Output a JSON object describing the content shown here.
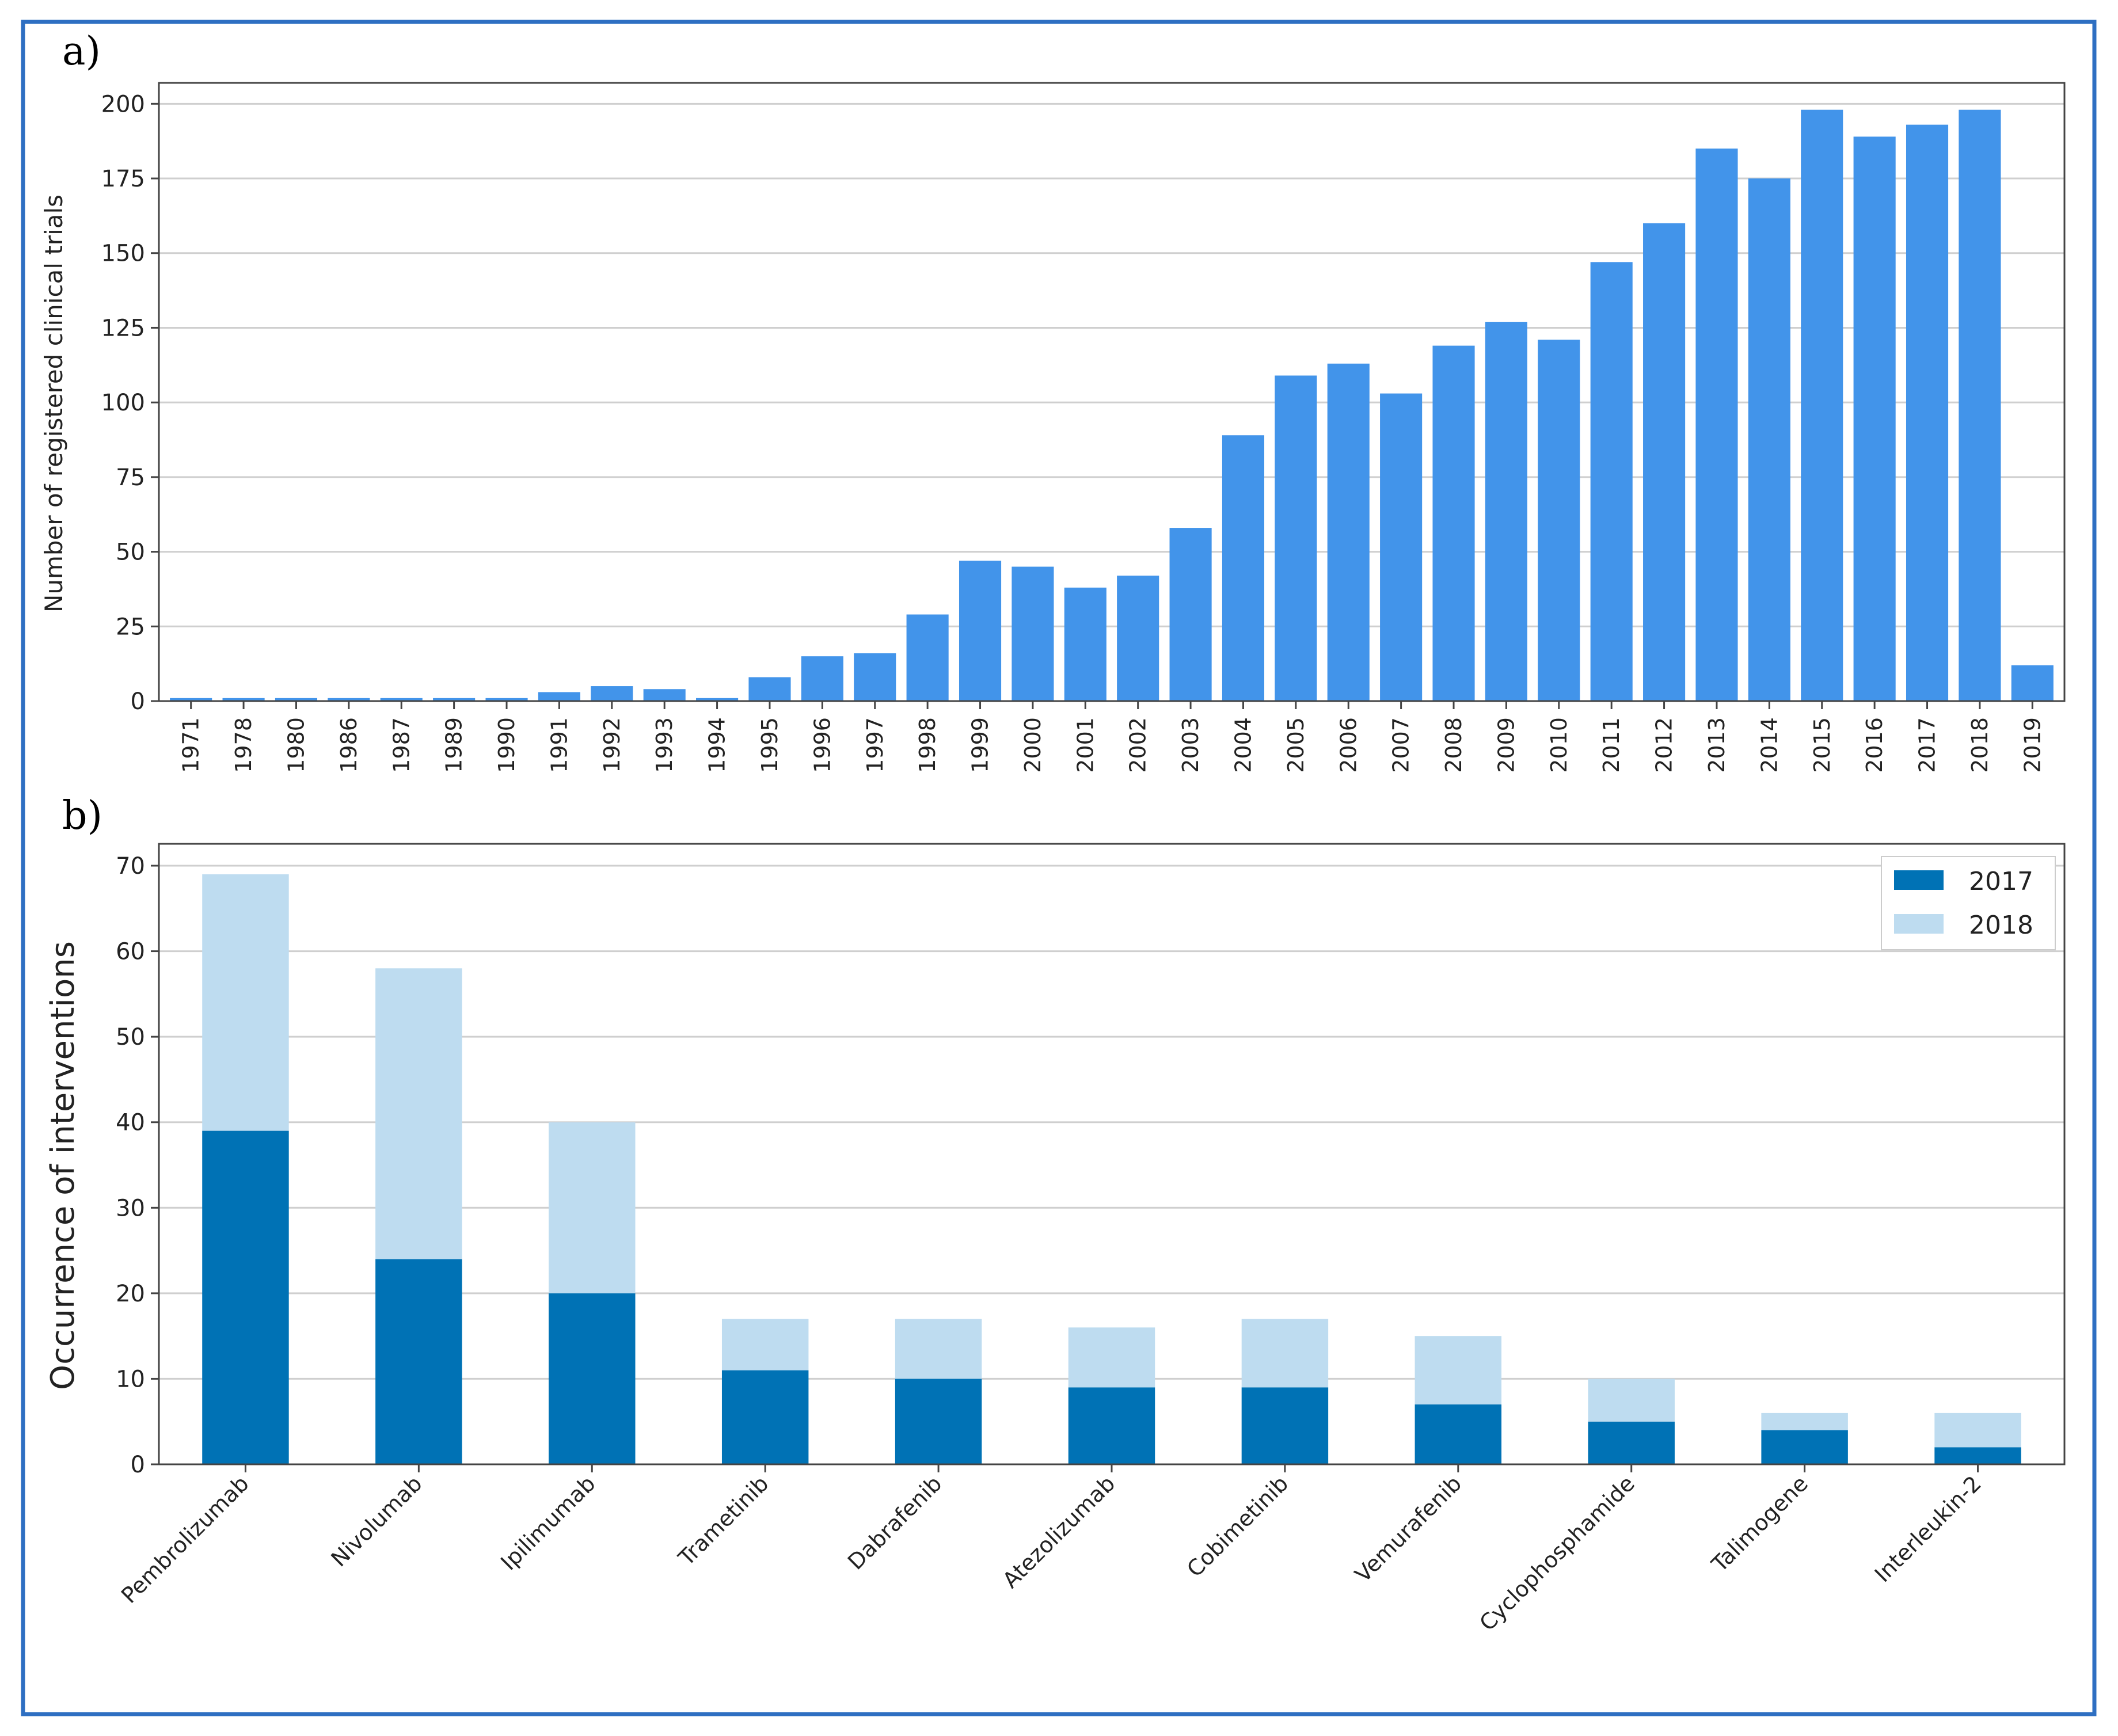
{
  "colors": {
    "frame": "#2e6fc2",
    "bar_a": "#4294ea",
    "bar_2017": "#0072b5",
    "bar_2018": "#bedcf0",
    "grid": "#cfcfcf",
    "axes": "#444444"
  },
  "panels": {
    "a": "a)",
    "b": "b)"
  },
  "chart_data": [
    {
      "type": "bar",
      "ylabel": "Number of registered clinical trials",
      "xlabel": "",
      "ylim": [
        0,
        207
      ],
      "yticks": [
        0,
        25,
        50,
        75,
        100,
        125,
        150,
        175,
        200
      ],
      "grid": "horizontal",
      "categories": [
        "1971",
        "1978",
        "1980",
        "1986",
        "1987",
        "1989",
        "1990",
        "1991",
        "1992",
        "1993",
        "1994",
        "1995",
        "1996",
        "1997",
        "1998",
        "1999",
        "2000",
        "2001",
        "2002",
        "2003",
        "2004",
        "2005",
        "2006",
        "2007",
        "2008",
        "2009",
        "2010",
        "2011",
        "2012",
        "2013",
        "2014",
        "2015",
        "2016",
        "2017",
        "2018",
        "2019"
      ],
      "values": [
        1,
        1,
        1,
        1,
        1,
        1,
        1,
        3,
        5,
        4,
        1,
        8,
        15,
        16,
        29,
        47,
        45,
        38,
        42,
        58,
        89,
        109,
        113,
        103,
        119,
        127,
        121,
        147,
        160,
        185,
        175,
        198,
        189,
        193,
        198,
        12
      ]
    },
    {
      "type": "bar",
      "stacked": true,
      "ylabel": "Occurrence of interventions",
      "xlabel": "",
      "ylim": [
        0,
        70
      ],
      "yticks": [
        0,
        10,
        20,
        30,
        40,
        50,
        60,
        70
      ],
      "grid": "horizontal",
      "legend_position": "top-right",
      "categories": [
        "Pembrolizumab",
        "Nivolumab",
        "Ipilimumab",
        "Trametinib",
        "Dabrafenib",
        "Atezolizumab",
        "Cobimetinib",
        "Vemurafenib",
        "Cyclophosphamide",
        "Talimogene",
        "Interleukin-2"
      ],
      "series": [
        {
          "name": "2017",
          "values": [
            39,
            24,
            20,
            11,
            10,
            9,
            9,
            7,
            5,
            4,
            2
          ]
        },
        {
          "name": "2018",
          "values": [
            30,
            34,
            20,
            6,
            7,
            7,
            8,
            8,
            5,
            2,
            4
          ]
        }
      ]
    }
  ]
}
